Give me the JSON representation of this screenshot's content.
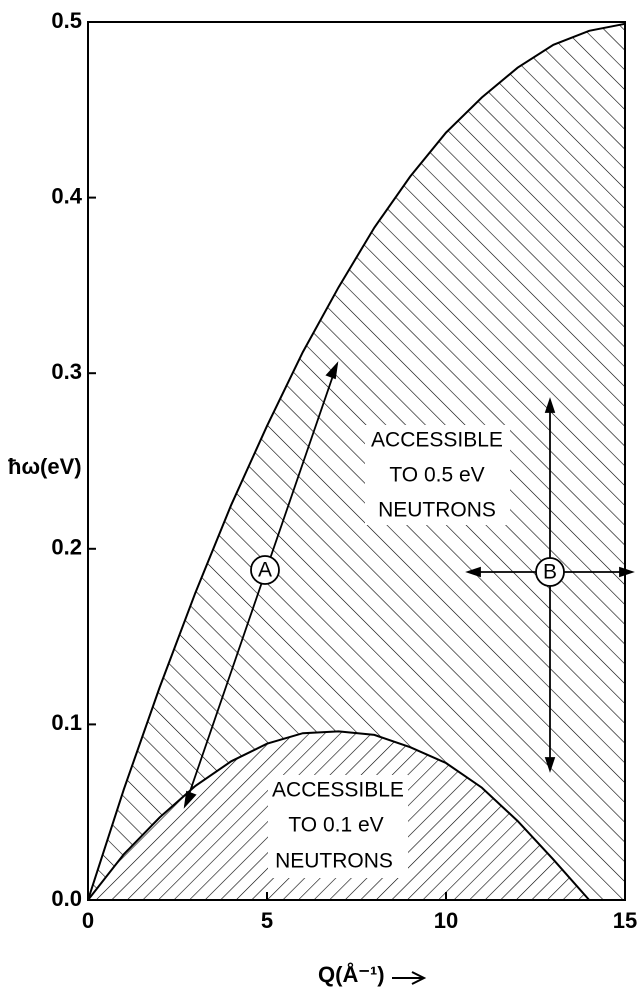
{
  "chart_data": {
    "type": "line",
    "y_label": "ħω(eV)",
    "x_label": "Q(Å⁻¹)",
    "x": [
      0,
      1,
      2,
      3,
      4,
      5,
      6,
      7,
      8,
      9,
      10,
      11,
      12,
      13,
      14,
      15
    ],
    "series": [
      {
        "color": "#000000",
        "values": [
          0,
          0.063,
          0.121,
          0.175,
          0.225,
          0.27,
          0.312,
          0.349,
          0.383,
          0.412,
          0.437,
          0.457,
          0.474,
          0.487,
          0.495,
          0.499
        ]
      },
      {
        "color": "#000000",
        "values": [
          0,
          0.026,
          0.047,
          0.065,
          0.079,
          0.089,
          0.095,
          0.096,
          0.094,
          0.087,
          0.078,
          0.064,
          0.045,
          0.023,
          0,
          null
        ]
      }
    ],
    "xlim": [
      0,
      15
    ],
    "xticks": [
      0,
      5,
      10,
      15
    ],
    "ylim": [
      0,
      0.5
    ],
    "yticks": [
      {
        "value": 0,
        "label": "0.0"
      },
      0.1,
      0.2,
      0.3,
      0.4,
      0.5
    ],
    "annotations": [
      "ACCESSIBLE",
      "TO 0.5 eV",
      "NEUTRONS",
      "ACCESSIBLE",
      "TO 0.1 eV",
      "NEUTRONS",
      "A",
      "B"
    ]
  }
}
